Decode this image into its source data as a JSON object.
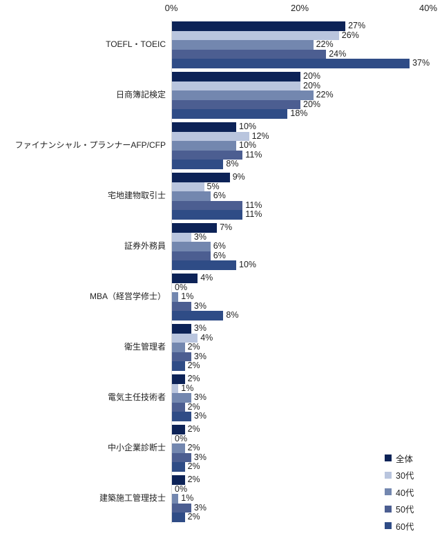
{
  "chart_data": {
    "type": "bar",
    "orientation": "horizontal",
    "title": "",
    "value_suffix": "%",
    "x_axis": {
      "position": "top",
      "range": [
        0,
        40
      ],
      "ticks": [
        {
          "label": "0%",
          "value": 0
        },
        {
          "label": "20%",
          "value": 20
        },
        {
          "label": "40%",
          "value": 40
        }
      ]
    },
    "grid": false,
    "bar_labels": true,
    "axis_line_color": "#d9d9d9",
    "text_color": "#1f1f1f",
    "background": "#ffffff",
    "categories": [
      "TOEFL・TOEIC",
      "日商簿記検定",
      "ファイナンシャル・プランナーAFP/CFP",
      "宅地建物取引士",
      "証券外務員",
      "MBA（経営学修士）",
      "衛生管理者",
      "電気主任技術者",
      "中小企業診断士",
      "建築施工管理技士"
    ],
    "series": [
      {
        "name": "全体",
        "color": "#0d2357",
        "values": [
          27,
          20,
          10,
          9,
          7,
          4,
          3,
          2,
          2,
          2
        ]
      },
      {
        "name": "30代",
        "color": "#b9c5de",
        "values": [
          26,
          20,
          12,
          5,
          3,
          0,
          4,
          1,
          0,
          0
        ]
      },
      {
        "name": "40代",
        "color": "#7387af",
        "values": [
          22,
          22,
          10,
          6,
          6,
          1,
          2,
          3,
          2,
          1
        ]
      },
      {
        "name": "50代",
        "color": "#4c5e91",
        "values": [
          24,
          20,
          11,
          11,
          6,
          3,
          3,
          2,
          3,
          3
        ]
      },
      {
        "name": "60代",
        "color": "#2f4c86",
        "values": [
          37,
          18,
          8,
          11,
          10,
          8,
          2,
          3,
          2,
          2
        ]
      }
    ],
    "legend": {
      "position": "bottom-right",
      "items": [
        "全体",
        "30代",
        "40代",
        "50代",
        "60代"
      ]
    }
  }
}
